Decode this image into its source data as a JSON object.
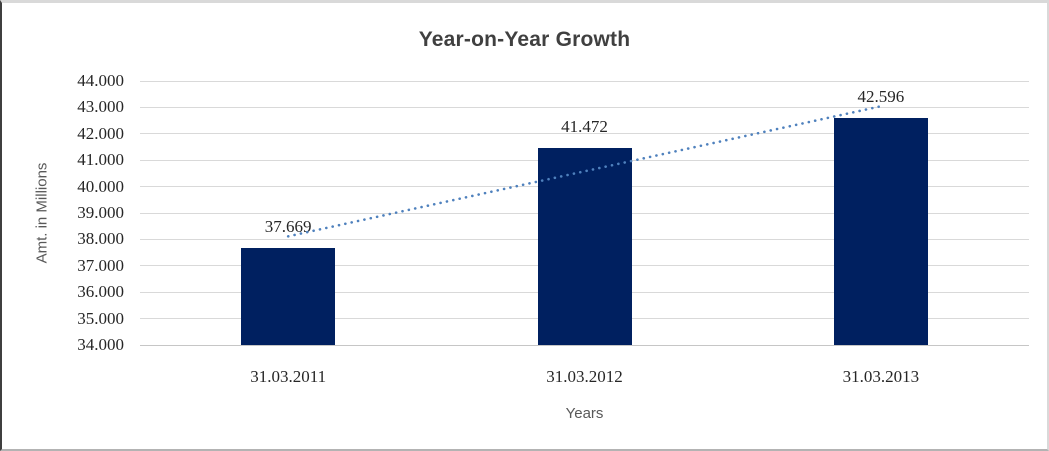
{
  "chart_data": {
    "type": "bar",
    "title": "Year-on-Year Growth",
    "categories": [
      "31.03.2011",
      "31.03.2012",
      "31.03.2013"
    ],
    "values": [
      37.669,
      41.472,
      42.596
    ],
    "data_labels": [
      "37.669",
      "41.472",
      "42.596"
    ],
    "xlabel": "Years",
    "ylabel": "Amt. in Millions",
    "ylim": [
      34,
      44
    ],
    "ytick_step": 1,
    "ytick_labels": [
      "34.000",
      "35.000",
      "36.000",
      "37.000",
      "38.000",
      "39.000",
      "40.000",
      "41.000",
      "42.000",
      "43.000",
      "44.000"
    ],
    "grid": true,
    "legend": "none",
    "trendline": {
      "type": "linear",
      "style": "dotted"
    },
    "colors": {
      "bar": "#002060",
      "trendline": "#4f81bd",
      "gridline": "#d9d9d9",
      "title": "#404040",
      "axis_title": "#595959",
      "tick_label": "#262626"
    }
  }
}
